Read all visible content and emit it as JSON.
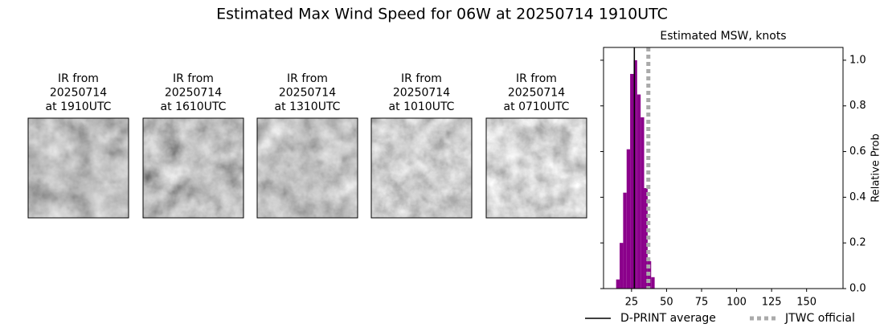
{
  "title": "Estimated Max Wind Speed for 06W at 20250714 1910UTC",
  "image_panels": [
    {
      "lines": [
        "IR from",
        "20250714",
        "at 1910UTC"
      ]
    },
    {
      "lines": [
        "IR from",
        "20250714",
        "at 1610UTC"
      ]
    },
    {
      "lines": [
        "IR from",
        "20250714",
        "at 1310UTC"
      ]
    },
    {
      "lines": [
        "IR from",
        "20250714",
        "at 1010UTC"
      ]
    },
    {
      "lines": [
        "IR from",
        "20250714",
        "at 0710UTC"
      ]
    }
  ],
  "chart_data": {
    "type": "histogram",
    "title": "Estimated MSW, knots",
    "y_label": "Relative Prob",
    "bins": [
      14,
      16.5,
      19,
      21.5,
      24,
      26.5,
      29,
      31.5,
      34,
      36.5,
      39,
      41.5
    ],
    "values": [
      0.04,
      0.2,
      0.42,
      0.61,
      0.94,
      1.0,
      0.85,
      0.75,
      0.44,
      0.12,
      0.05
    ],
    "color": "#8b008b",
    "xlim": [
      5,
      176
    ],
    "ylim": [
      0,
      1.056
    ],
    "xticks": [
      25,
      50,
      75,
      100,
      125,
      150
    ],
    "yticks": [
      {
        "value": 0,
        "label": "0.0"
      },
      0.2,
      0.4,
      0.6,
      0.8,
      {
        "value": 1,
        "label": "1.0"
      }
    ],
    "reference_lines": [
      {
        "name": "D-PRINT average",
        "value": 27,
        "color": "#000000",
        "style": "solid"
      },
      {
        "name": "JTWC official",
        "value": 37,
        "color": "#aaaaaa",
        "style": "dotted"
      }
    ],
    "legend": "bottom"
  }
}
